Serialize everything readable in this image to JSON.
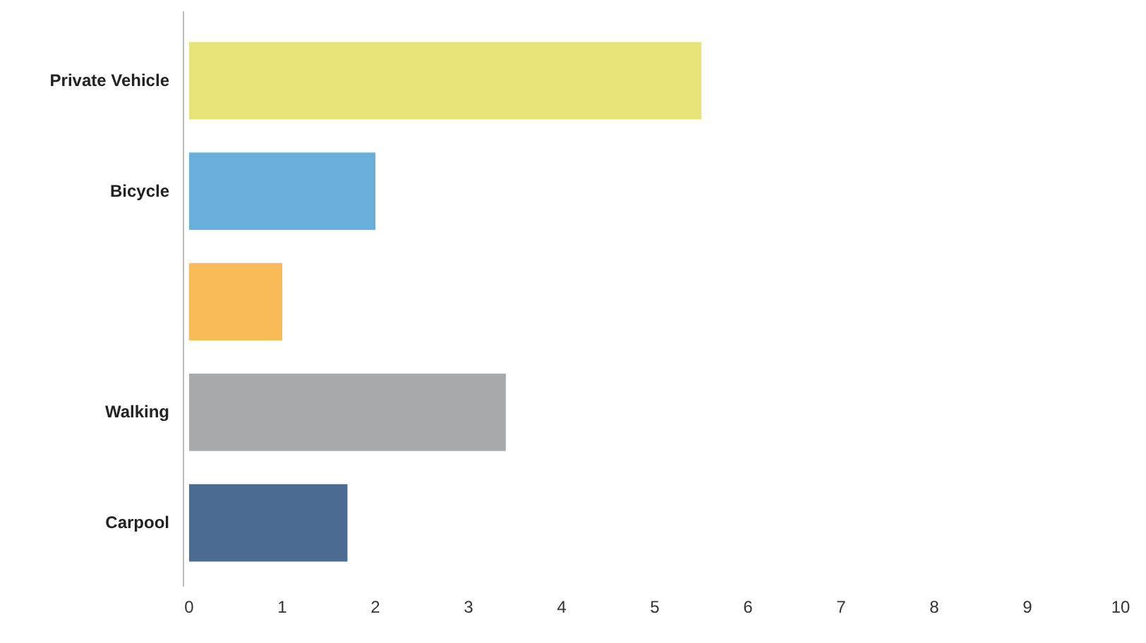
{
  "chart_data": {
    "type": "bar",
    "orientation": "horizontal",
    "categories": [
      "Private Vehicle",
      "Bicycle",
      null,
      "Walking",
      "Carpool"
    ],
    "values": [
      5.5,
      2,
      1,
      3.4,
      1.7
    ],
    "colors": [
      "#e8e47a",
      "#6aafdc",
      "#f7bb58",
      "#a8a9ab",
      "#4b6b93"
    ],
    "xlim": [
      0,
      10
    ],
    "xticks": [
      0,
      1,
      2,
      3,
      4,
      5,
      6,
      7,
      8,
      9,
      10
    ],
    "grid": false
  }
}
